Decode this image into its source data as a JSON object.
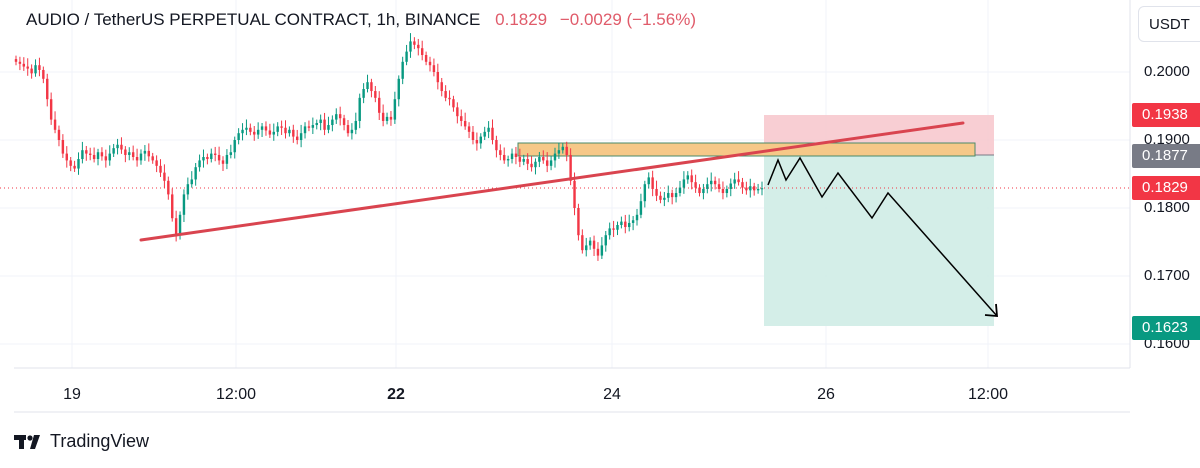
{
  "header": {
    "title": "AUDIO / TetherUS PERPETUAL CONTRACT, 1h, BINANCE",
    "price": "0.1829",
    "change": "−0.0029 (−1.56%)",
    "negative_color": "#e05b6a"
  },
  "currency_button": "USDT",
  "footer": {
    "brand": "TradingView",
    "logo_icon": "tradingview-logo-icon"
  },
  "price_badges": [
    {
      "label": "0.1938",
      "color": "#f23645"
    },
    {
      "label": "0.1877",
      "color": "#787b86"
    },
    {
      "label": "0.1829",
      "color": "#f23645"
    },
    {
      "label": "0.1623",
      "color": "#089981"
    }
  ],
  "chart_data": {
    "type": "candlestick",
    "y_ticks": [
      "0.2000",
      "0.1900",
      "0.1800",
      "0.1700",
      "0.1600"
    ],
    "x_ticks": [
      {
        "label": "19",
        "bold": false
      },
      {
        "label": "12:00",
        "bold": false
      },
      {
        "label": "22",
        "bold": true
      },
      {
        "label": "24",
        "bold": false
      },
      {
        "label": "26",
        "bold": false
      },
      {
        "label": "12:00",
        "bold": false
      }
    ],
    "ylim": [
      0.1555,
      0.2045
    ],
    "last_price": 0.1829,
    "candles_close": [
      0.2015,
      0.2012,
      0.2008,
      0.2005,
      0.1998,
      0.201,
      0.2003,
      0.199,
      0.196,
      0.193,
      0.1915,
      0.19,
      0.188,
      0.187,
      0.1862,
      0.1858,
      0.1872,
      0.1885,
      0.188,
      0.1878,
      0.1872,
      0.1882,
      0.1876,
      0.187,
      0.188,
      0.1888,
      0.1893,
      0.1886,
      0.1878,
      0.1882,
      0.1875,
      0.187,
      0.188,
      0.1884,
      0.1876,
      0.187,
      0.1862,
      0.1852,
      0.184,
      0.182,
      0.1785,
      0.176,
      0.179,
      0.182,
      0.1835,
      0.1842,
      0.186,
      0.187,
      0.1875,
      0.1872,
      0.188,
      0.1878,
      0.187,
      0.1865,
      0.1878,
      0.1882,
      0.19,
      0.191,
      0.1915,
      0.1918,
      0.1912,
      0.1908,
      0.1915,
      0.192,
      0.1914,
      0.1908,
      0.1912,
      0.192,
      0.1918,
      0.191,
      0.1915,
      0.1905,
      0.19,
      0.191,
      0.192,
      0.1918,
      0.1922,
      0.1925,
      0.193,
      0.1915,
      0.1922,
      0.193,
      0.1938,
      0.1932,
      0.1922,
      0.191,
      0.1915,
      0.1928,
      0.1962,
      0.1975,
      0.1985,
      0.1972,
      0.1962,
      0.194,
      0.1928,
      0.1934,
      0.193,
      0.196,
      0.199,
      0.2015,
      0.203,
      0.2045,
      0.204,
      0.2035,
      0.2025,
      0.2015,
      0.201,
      0.2,
      0.1985,
      0.1972,
      0.1962,
      0.196,
      0.1948,
      0.1935,
      0.1928,
      0.192,
      0.1912,
      0.19,
      0.1895,
      0.1905,
      0.1912,
      0.1918,
      0.19,
      0.1885,
      0.1878,
      0.187,
      0.1872,
      0.188,
      0.1875,
      0.1868,
      0.1872,
      0.1865,
      0.186,
      0.1868,
      0.1875,
      0.187,
      0.1862,
      0.187,
      0.188,
      0.1885,
      0.189,
      0.1878,
      0.184,
      0.18,
      0.176,
      0.1738,
      0.1745,
      0.1752,
      0.174,
      0.173,
      0.1745,
      0.176,
      0.177,
      0.1768,
      0.1775,
      0.178,
      0.1772,
      0.1778,
      0.1782,
      0.179,
      0.181,
      0.1835,
      0.1845,
      0.1828,
      0.1818,
      0.1812,
      0.1815,
      0.1822,
      0.1816,
      0.1822,
      0.183,
      0.1842,
      0.1848,
      0.1838,
      0.183,
      0.1822,
      0.1828,
      0.1835,
      0.184,
      0.1835,
      0.1828,
      0.1822,
      0.1828,
      0.1836,
      0.1842,
      0.1838,
      0.183,
      0.1826,
      0.1832,
      0.1826,
      0.1828,
      0.1829
    ]
  },
  "drawings": {
    "trendline_color": "#d9444f",
    "stop_zone_color": "#f7c6cb",
    "target_zone_color": "#cfece5",
    "resistance_zone_color": "#f6c888",
    "projection_color": "#000000"
  }
}
